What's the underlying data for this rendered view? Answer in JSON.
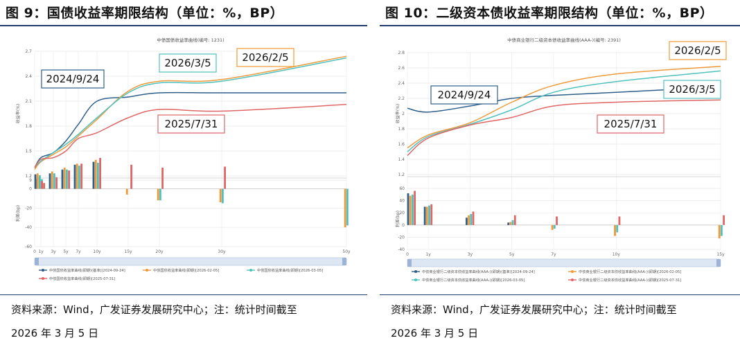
{
  "chart_data": [
    {
      "type": "line",
      "figure_title": "图 9：国债收益率期限结构（单位：%，BP）",
      "title": "中债国债收益率曲线(编号: 1231)",
      "ylabel": "收益率(%)",
      "ylim": [
        1.2,
        2.7
      ],
      "yticks": [
        "2.7",
        "2.4",
        "2.1",
        "1.8",
        "1.5",
        "1.2"
      ],
      "tenors": [
        0,
        1,
        3,
        5,
        7,
        10,
        15,
        20,
        30,
        50
      ],
      "tenor_labels": [
        "0",
        "1y",
        "3y",
        "5y",
        "7y",
        "10y",
        "15y",
        "20y",
        "30y",
        "50y"
      ],
      "series": [
        {
          "name": "中债国债收益率曲线(即期)(基准)[2024-09-24]",
          "color": "#2e5f8a",
          "values": [
            1.3,
            1.42,
            1.48,
            1.62,
            1.82,
            2.1,
            2.15,
            2.2,
            2.2,
            2.2
          ]
        },
        {
          "name": "中债国债收益率曲线(即期)[2026-02-05]",
          "color": "#ee9a3a",
          "values": [
            1.28,
            1.37,
            1.46,
            1.55,
            1.68,
            1.88,
            2.22,
            2.34,
            2.36,
            2.64
          ]
        },
        {
          "name": "中债国债收益率曲线(即期)[2026-03-05]",
          "color": "#4fc1bd",
          "values": [
            1.3,
            1.38,
            1.48,
            1.58,
            1.7,
            1.9,
            2.2,
            2.32,
            2.34,
            2.62
          ]
        },
        {
          "name": "中债国债收益率曲线(即期)[2025-07-31]",
          "color": "#e06565",
          "values": [
            1.3,
            1.4,
            1.42,
            1.5,
            1.65,
            1.72,
            1.9,
            2.0,
            1.98,
            2.06
          ]
        }
      ],
      "bar_panel": {
        "ylabel": "利差(bp)",
        "ylim": [
          -60,
          9
        ],
        "yticks": [
          "9",
          "0",
          "-20",
          "-40",
          "-60"
        ],
        "bar_values": [
          [
            15,
            10,
            16,
            20,
            25,
            28,
            0,
            0,
            0,
            0
          ],
          [
            16,
            12,
            18,
            22,
            26,
            30,
            -6,
            -12,
            -14,
            -40
          ],
          [
            14,
            10,
            16,
            20,
            24,
            27,
            0,
            -12,
            -15,
            -38
          ],
          [
            8,
            6,
            12,
            19,
            26,
            32,
            25,
            22,
            23,
            0
          ]
        ]
      },
      "annotations": [
        {
          "text": "2024/9/24",
          "series": 0
        },
        {
          "text": "2026/3/5",
          "series": 2
        },
        {
          "text": "2026/2/5",
          "series": 1
        },
        {
          "text": "2025/7/31",
          "series": 3
        }
      ],
      "legend": "bottom"
    },
    {
      "type": "line",
      "figure_title": "图 10：二级资本债收益率期限结构（单位：%，BP）",
      "title": "中债商业银行二级资本债收益率曲线(AAA-)(编号: 2391)",
      "ylabel": "收益率(%)",
      "ylim": [
        1.2,
        2.8
      ],
      "yticks": [
        "2.8",
        "2.6",
        "2.4",
        "2.2",
        "2",
        "1.8",
        "1.6",
        "1.4",
        "1.2"
      ],
      "tenors": [
        0,
        1,
        3,
        5,
        7,
        10,
        15
      ],
      "tenor_labels": [
        "0",
        "1y",
        "3y",
        "5y",
        "7y",
        "10y",
        "15y"
      ],
      "series": [
        {
          "name": "中债商业银行二级资本债收益率曲线(AAA-)(即期)(基准)[2024-09-24]",
          "color": "#2e5f8a",
          "values": [
            2.07,
            2.02,
            2.1,
            2.2,
            2.24,
            2.28,
            2.35
          ]
        },
        {
          "name": "中债商业银行二级资本债收益率曲线(AAA-)(即期)[2026-02-05]",
          "color": "#ee9a3a",
          "values": [
            1.55,
            1.72,
            1.88,
            2.15,
            2.37,
            2.52,
            2.62
          ]
        },
        {
          "name": "中债商业银行二级资本债收益率曲线(AAA-)(即期)[2026-03-05]",
          "color": "#4fc1bd",
          "values": [
            1.5,
            1.7,
            1.86,
            2.05,
            2.28,
            2.42,
            2.56
          ]
        },
        {
          "name": "中债商业银行二级资本债收益率曲线(AAA-)(即期)[2025-07-31]",
          "color": "#e06565",
          "values": [
            1.45,
            1.68,
            1.85,
            1.95,
            2.1,
            2.15,
            2.18
          ]
        }
      ],
      "bar_panel": {
        "ylabel": "利差(bp)",
        "ylim": [
          -40,
          60
        ],
        "yticks": [
          "60",
          "40",
          "20",
          "0",
          "-20",
          "-40"
        ],
        "bar_values": [
          [
            52,
            30,
            12,
            4,
            0,
            0,
            0
          ],
          [
            48,
            30,
            16,
            5,
            -8,
            -18,
            -22
          ],
          [
            50,
            32,
            18,
            8,
            -6,
            -12,
            -18
          ],
          [
            56,
            34,
            22,
            16,
            14,
            14,
            16
          ]
        ]
      },
      "annotations": [
        {
          "text": "2024/9/24",
          "series": 0
        },
        {
          "text": "2026/2/5",
          "series": 1
        },
        {
          "text": "2026/3/5",
          "series": 2
        },
        {
          "text": "2025/7/31",
          "series": 3
        }
      ],
      "legend": "bottom"
    }
  ],
  "source_note": {
    "line1": "资料来源：Wind，广发证券发展研究中心；注：统计时间截至",
    "line2": "2026 年 3 月 5 日"
  }
}
